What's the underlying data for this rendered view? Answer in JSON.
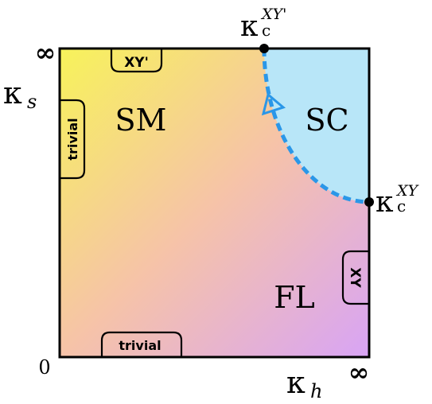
{
  "axes": {
    "x_symbol": "κ",
    "x_subscript": "h",
    "y_symbol": "κ",
    "y_subscript": "s",
    "origin": "0",
    "x_infinity": "∞",
    "y_infinity": "∞"
  },
  "phases": {
    "sm": "SM",
    "sc": "SC",
    "fl": "FL"
  },
  "edge_tags": {
    "top": "XY'",
    "right": "XY",
    "left": "trivial",
    "bottom": "trivial"
  },
  "critical_points": {
    "top_symbol": "κ",
    "top_subscript": "c",
    "top_superscript": "XY'",
    "right_symbol": "κ",
    "right_subscript": "c",
    "right_superscript": "XY"
  },
  "colors": {
    "sm_yellow": "#f7f35a",
    "mid_peach": "#f6c3a8",
    "fl_violet": "#d8a4f5",
    "sc_blue": "#b8e6f8",
    "boundary_blue": "#2a97e8",
    "outline": "#000000"
  }
}
